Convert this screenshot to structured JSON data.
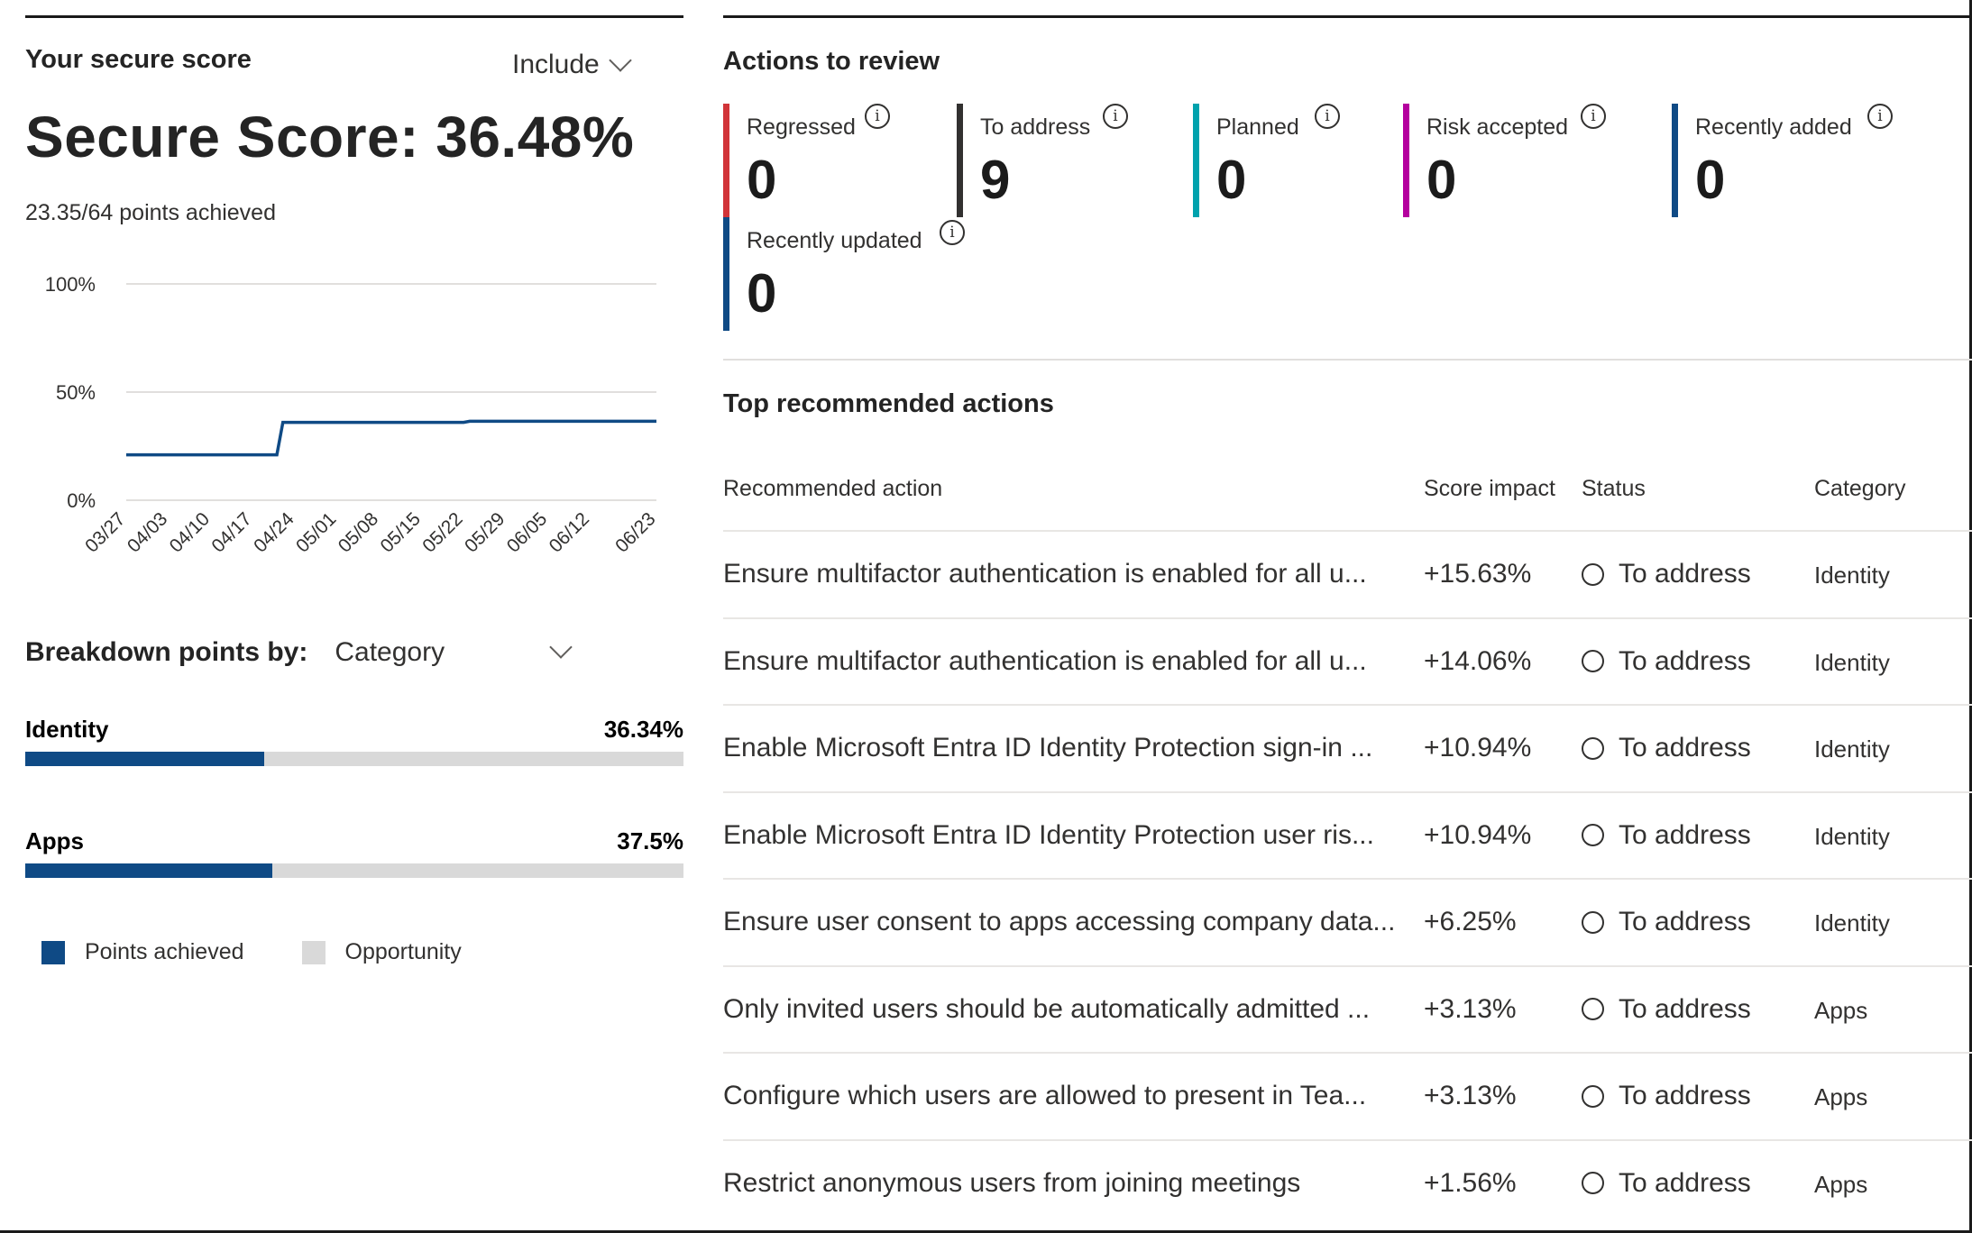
{
  "left": {
    "title": "Your secure score",
    "include_label": "Include",
    "score_title": "Secure Score: 36.48%",
    "points_text": "23.35/64 points achieved",
    "breakdown_label": "Breakdown points by:",
    "breakdown_value": "Category",
    "categories": [
      {
        "name": "Identity",
        "pct_label": "36.34%",
        "fraction": 0.3634
      },
      {
        "name": "Apps",
        "pct_label": "37.5%",
        "fraction": 0.375
      }
    ],
    "legend": [
      {
        "label": "Points achieved",
        "color": "#0f4a85"
      },
      {
        "label": "Opportunity",
        "color": "#d9d9d9"
      }
    ]
  },
  "chart_data": {
    "type": "line",
    "y_ticks": [
      "100%",
      "50%",
      "0%"
    ],
    "ylim": [
      0,
      100
    ],
    "x_tick_labels": [
      "03/27",
      "04/03",
      "04/10",
      "04/17",
      "04/24",
      "05/01",
      "05/08",
      "05/15",
      "05/22",
      "05/29",
      "06/05",
      "06/12",
      "06/23"
    ],
    "series": [
      {
        "color": "#0f4a85",
        "points": [
          {
            "x": "03/27",
            "y": 21
          },
          {
            "x": "04/21",
            "y": 21
          },
          {
            "x": "04/22",
            "y": 36
          },
          {
            "x": "05/22",
            "y": 36
          },
          {
            "x": "05/23",
            "y": 36.5
          },
          {
            "x": "06/23",
            "y": 36.5
          }
        ]
      }
    ]
  },
  "right": {
    "title": "Actions to review",
    "tiles": [
      {
        "label": "Regressed",
        "value": "0",
        "color": "#d13438"
      },
      {
        "label": "To address",
        "value": "9",
        "color": "#323130"
      },
      {
        "label": "Planned",
        "value": "0",
        "color": "#00a2ad"
      },
      {
        "label": "Risk accepted",
        "value": "0",
        "color": "#b4009e"
      },
      {
        "label": "Recently added",
        "value": "0",
        "color": "#0f4a85"
      },
      {
        "label": "Recently updated",
        "value": "0",
        "color": "#0f4a85"
      }
    ],
    "info_glyph": "i",
    "subtitle": "Top recommended actions",
    "headers": {
      "action": "Recommended action",
      "impact": "Score impact",
      "status": "Status",
      "category": "Category"
    },
    "rows": [
      {
        "action": "Ensure multifactor authentication is enabled for all u...",
        "impact": "+15.63%",
        "status": "To address",
        "category": "Identity"
      },
      {
        "action": "Ensure multifactor authentication is enabled for all u...",
        "impact": "+14.06%",
        "status": "To address",
        "category": "Identity"
      },
      {
        "action": "Enable Microsoft Entra ID Identity Protection sign-in ...",
        "impact": "+10.94%",
        "status": "To address",
        "category": "Identity"
      },
      {
        "action": "Enable Microsoft Entra ID Identity Protection user ris...",
        "impact": "+10.94%",
        "status": "To address",
        "category": "Identity"
      },
      {
        "action": "Ensure user consent to apps accessing company data...",
        "impact": "+6.25%",
        "status": "To address",
        "category": "Identity"
      },
      {
        "action": "Only invited users should be automatically admitted ...",
        "impact": "+3.13%",
        "status": "To address",
        "category": "Apps"
      },
      {
        "action": "Configure which users are allowed to present in Tea...",
        "impact": "+3.13%",
        "status": "To address",
        "category": "Apps"
      },
      {
        "action": "Restrict anonymous users from joining meetings",
        "impact": "+1.56%",
        "status": "To address",
        "category": "Apps"
      }
    ]
  }
}
